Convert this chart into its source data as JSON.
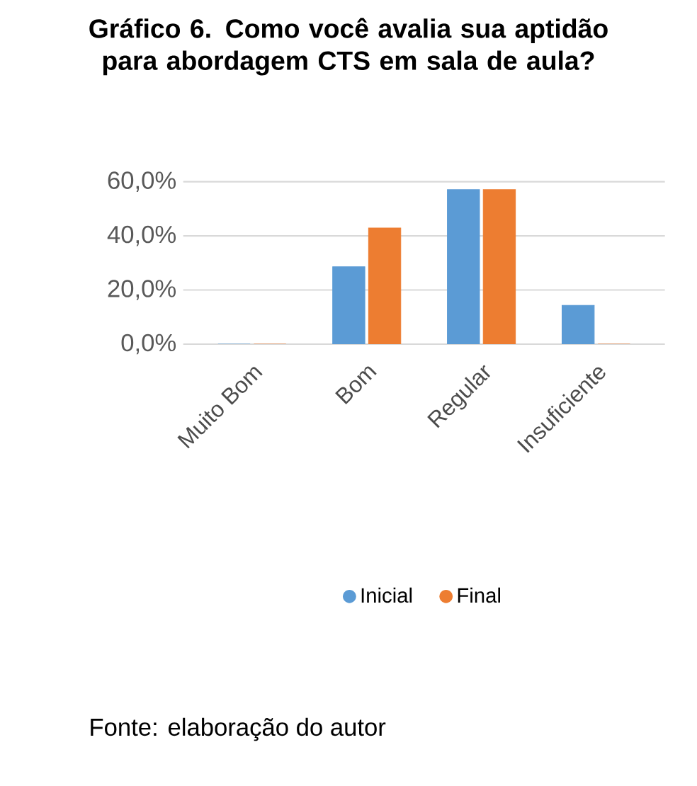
{
  "chart_data": {
    "type": "bar",
    "title": "Gráfico 6. Como você avalia sua aptidão para abordagem CTS em sala de aula?",
    "categories": [
      "Muito Bom",
      "Bom",
      "Regular",
      "Insuficiente"
    ],
    "series": [
      {
        "name": "Inicial",
        "color": "#5b9bd5",
        "values": [
          0,
          28.6,
          57.1,
          14.3
        ]
      },
      {
        "name": "Final",
        "color": "#ed7d31",
        "values": [
          0,
          42.9,
          57.1,
          0
        ]
      }
    ],
    "ylim": [
      0,
      60
    ],
    "yticks": [
      {
        "value": 0,
        "label": "0,0%"
      },
      {
        "value": 20,
        "label": "20,0%"
      },
      {
        "value": 40,
        "label": "40,0%"
      },
      {
        "value": 60,
        "label": "60,0%"
      }
    ],
    "grid": "y",
    "legend": "bottom",
    "annotations": [
      "Fonte: elaboração do autor"
    ]
  }
}
